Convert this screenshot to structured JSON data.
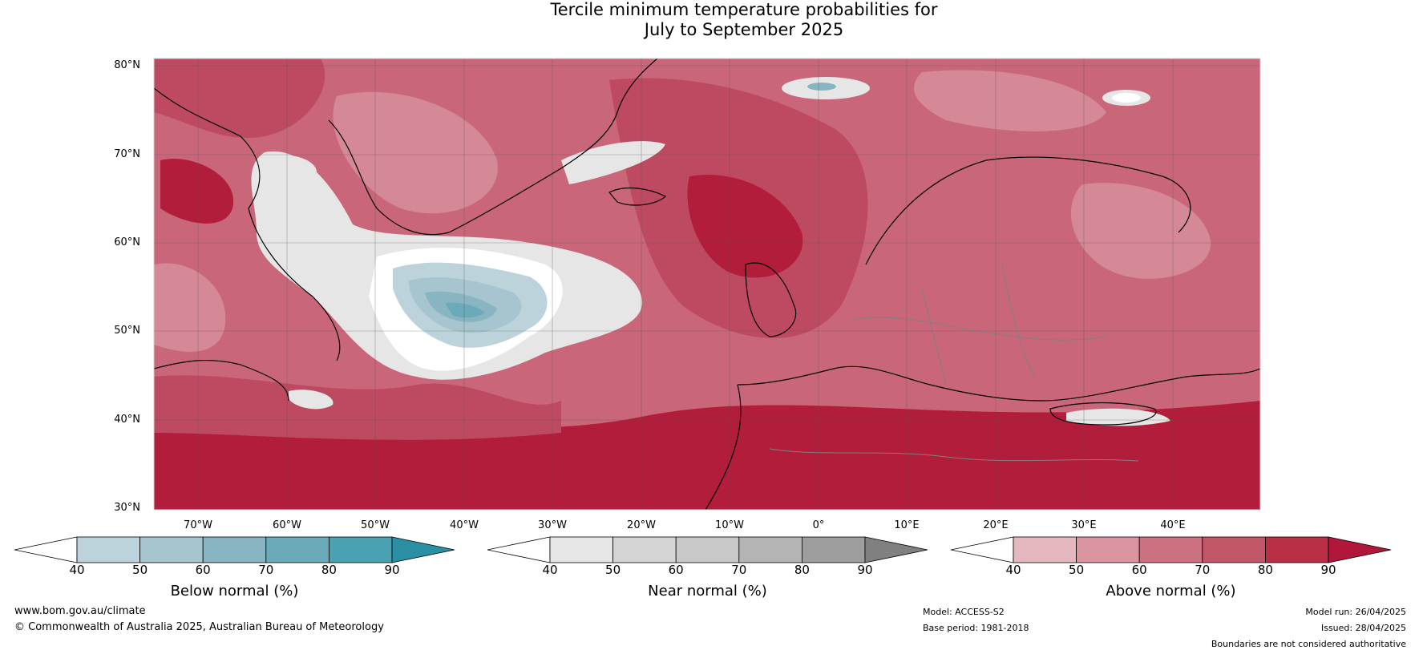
{
  "title": {
    "line1": "Tercile minimum temperature probabilities for",
    "line2": "July to September 2025"
  },
  "lat_labels": [
    "80°N",
    "70°N",
    "60°N",
    "50°N",
    "40°N",
    "30°N"
  ],
  "lon_labels": [
    "70°W",
    "60°W",
    "50°W",
    "40°W",
    "30°W",
    "20°W",
    "10°W",
    "0°",
    "10°E",
    "20°E",
    "30°E",
    "40°E"
  ],
  "colorbars": [
    {
      "label": "Below normal (%)",
      "ticks": [
        "40",
        "50",
        "60",
        "70",
        "80",
        "90"
      ],
      "colors": [
        "#ffffff",
        "#bcd3dc",
        "#a6c5cf",
        "#89b5c3",
        "#6aaab9",
        "#4aa1b2",
        "#2b8fa3"
      ]
    },
    {
      "label": "Near normal (%)",
      "ticks": [
        "40",
        "50",
        "60",
        "70",
        "80",
        "90"
      ],
      "colors": [
        "#ffffff",
        "#e6e6e6",
        "#d5d5d5",
        "#c8c8c8",
        "#b4b4b4",
        "#9e9e9e",
        "#808080"
      ]
    },
    {
      "label": "Above normal (%)",
      "ticks": [
        "40",
        "50",
        "60",
        "70",
        "80",
        "90"
      ],
      "colors": [
        "#ffffff",
        "#e5b7bf",
        "#d9949f",
        "#cc717f",
        "#c15667",
        "#b92f45",
        "#b1173a"
      ]
    }
  ],
  "footer": {
    "url": "www.bom.gov.au/climate",
    "copyright": "© Commonwealth of Australia 2025, Australian Bureau of Meteorology",
    "model": "Model: ACCESS-S2",
    "base_period": "Base period: 1981-2018",
    "model_run": "Model run: 26/04/2025",
    "issued": "Issued: 28/04/2025",
    "disclaimer": "Boundaries are not considered authoritative"
  },
  "map_colors": {
    "above_50": "#e2aab3",
    "above_60": "#d58896",
    "above_70": "#c9667a",
    "above_80": "#bd4a60",
    "above_90": "#b21d3c",
    "near_50": "#e6e6e6",
    "below_50": "#bcd3dc",
    "below_60": "#a6c5cf",
    "below_70": "#89b5c3",
    "below_80": "#6aaab9"
  }
}
